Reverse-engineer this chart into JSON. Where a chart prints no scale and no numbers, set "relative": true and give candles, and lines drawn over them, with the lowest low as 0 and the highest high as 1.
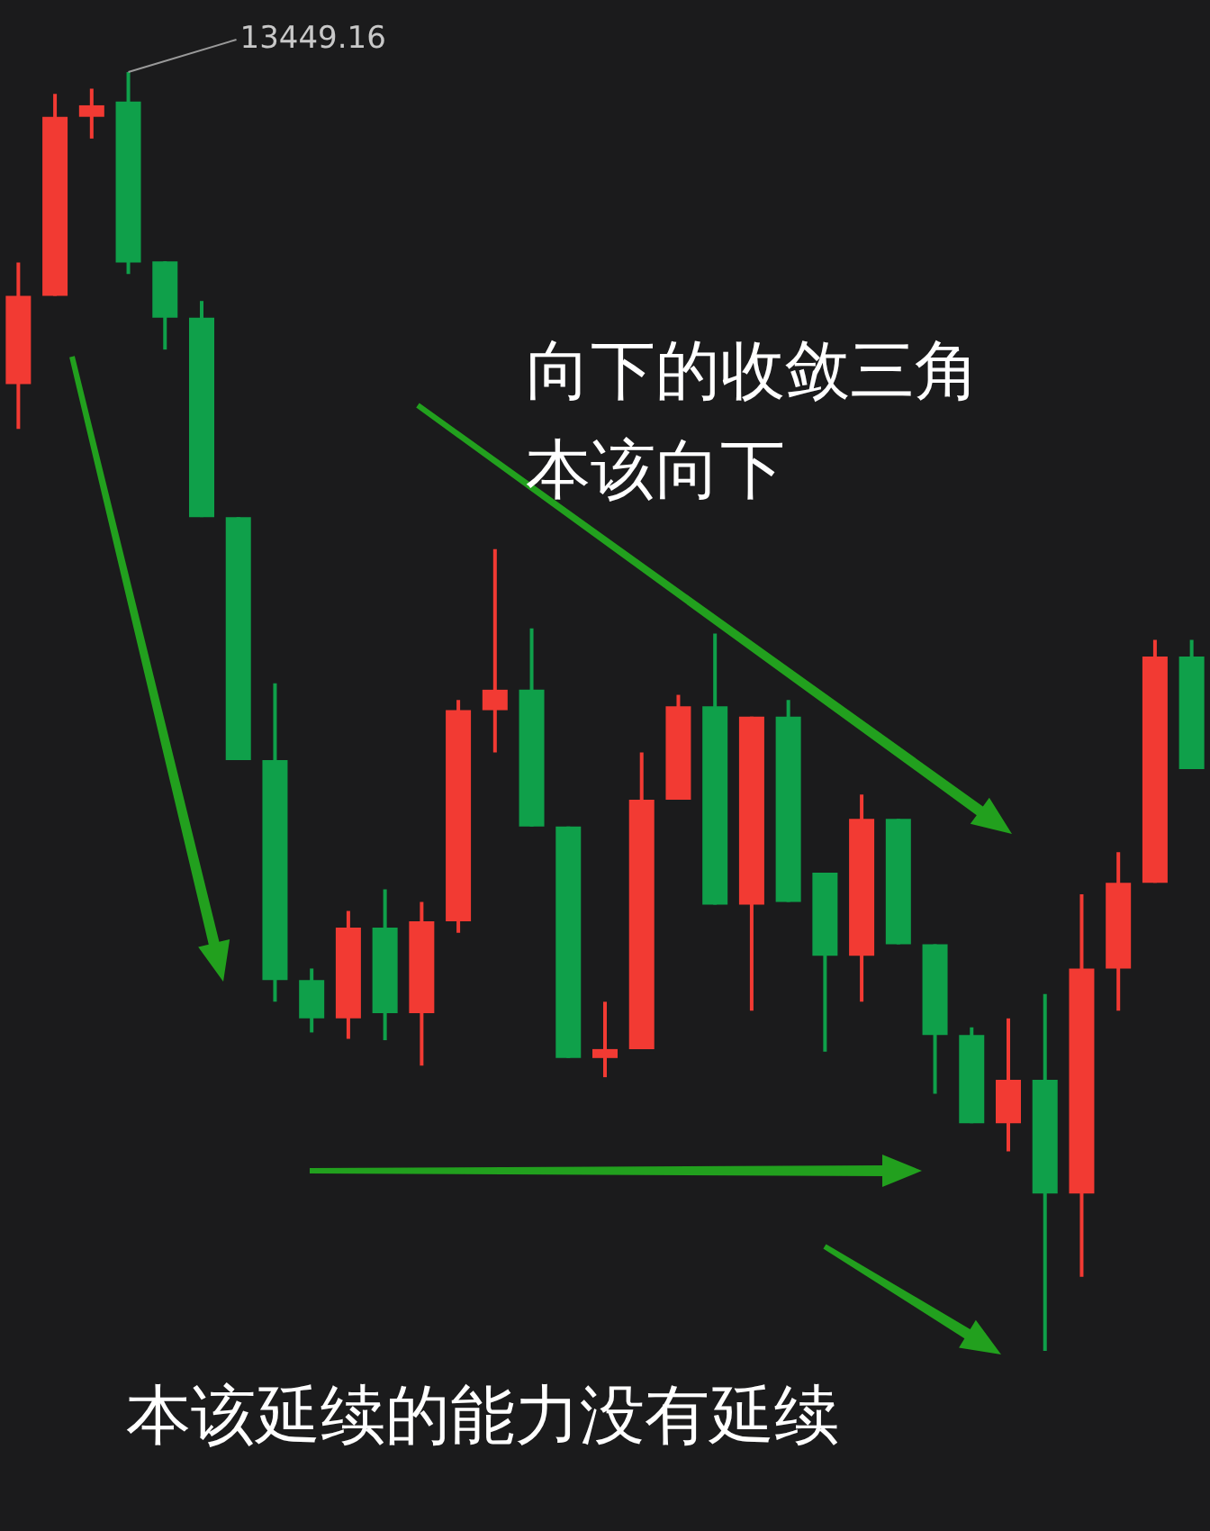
{
  "chart_data": {
    "type": "candlestick",
    "relative": true,
    "tick_labels": false,
    "categories": [
      null,
      null,
      null,
      null,
      null,
      null,
      null,
      null,
      null,
      null,
      null,
      null,
      null,
      null,
      null,
      null,
      null,
      null,
      null,
      null,
      null,
      null,
      null,
      null,
      null,
      null,
      null,
      null,
      null,
      null,
      null,
      null,
      null
    ],
    "ohlc": [
      [
        0.756,
        0.851,
        0.721,
        0.825
      ],
      [
        0.825,
        0.983,
        0.825,
        0.965
      ],
      [
        0.965,
        0.987,
        0.948,
        0.974
      ],
      [
        0.977,
        1,
        0.842,
        0.851
      ],
      [
        0.852,
        0.852,
        0.783,
        0.808
      ],
      [
        0.808,
        0.821,
        0.652,
        0.652
      ],
      [
        0.652,
        0.652,
        0.462,
        0.462
      ],
      [
        0.462,
        0.522,
        0.273,
        0.29
      ],
      [
        0.29,
        0.299,
        0.249,
        0.26
      ],
      [
        0.26,
        0.344,
        0.244,
        0.331
      ],
      [
        0.331,
        0.361,
        0.243,
        0.264
      ],
      [
        0.264,
        0.351,
        0.223,
        0.336
      ],
      [
        0.336,
        0.509,
        0.327,
        0.501
      ],
      [
        0.501,
        0.627,
        0.468,
        0.517
      ],
      [
        0.517,
        0.565,
        0.41,
        0.41
      ],
      [
        0.41,
        0.41,
        0.229,
        0.229
      ],
      [
        0.229,
        0.273,
        0.214,
        0.236
      ],
      [
        0.236,
        0.468,
        0.236,
        0.431
      ],
      [
        0.431,
        0.513,
        0.431,
        0.504
      ],
      [
        0.504,
        0.561,
        0.349,
        0.349
      ],
      [
        0.349,
        0.496,
        0.266,
        0.496
      ],
      [
        0.496,
        0.509,
        0.351,
        0.351
      ],
      [
        0.374,
        0.374,
        0.234,
        0.309
      ],
      [
        0.309,
        0.435,
        0.273,
        0.416
      ],
      [
        0.416,
        0.416,
        0.318,
        0.318
      ],
      [
        0.318,
        0.318,
        0.201,
        0.247
      ],
      [
        0.247,
        0.253,
        0.178,
        0.178
      ],
      [
        0.178,
        0.26,
        0.156,
        0.212
      ],
      [
        0.212,
        0.279,
        0,
        0.123
      ],
      [
        0.123,
        0.357,
        0.058,
        0.299
      ],
      [
        0.299,
        0.39,
        0.266,
        0.366
      ],
      [
        0.366,
        0.556,
        0.366,
        0.543
      ],
      [
        0.543,
        0.556,
        0.455,
        0.455
      ]
    ],
    "colors": [
      "#f23a33",
      "#f23a33",
      "#f23a33",
      "#0fa04a",
      "#0fa04a",
      "#0fa04a",
      "#0fa04a",
      "#0fa04a",
      "#0fa04a",
      "#f23a33",
      "#0fa04a",
      "#f23a33",
      "#f23a33",
      "#f23a33",
      "#0fa04a",
      "#0fa04a",
      "#f23a33",
      "#f23a33",
      "#f23a33",
      "#0fa04a",
      "#f23a33",
      "#0fa04a",
      "#0fa04a",
      "#f23a33",
      "#0fa04a",
      "#0fa04a",
      "#0fa04a",
      "#f23a33",
      "#0fa04a",
      "#f23a33",
      "#f23a33",
      "#f23a33",
      "#0fa04a"
    ],
    "annotations": [
      "向下的收敛三角",
      "本该向下",
      "本该延续的能力没有延续",
      "13449.16"
    ]
  }
}
